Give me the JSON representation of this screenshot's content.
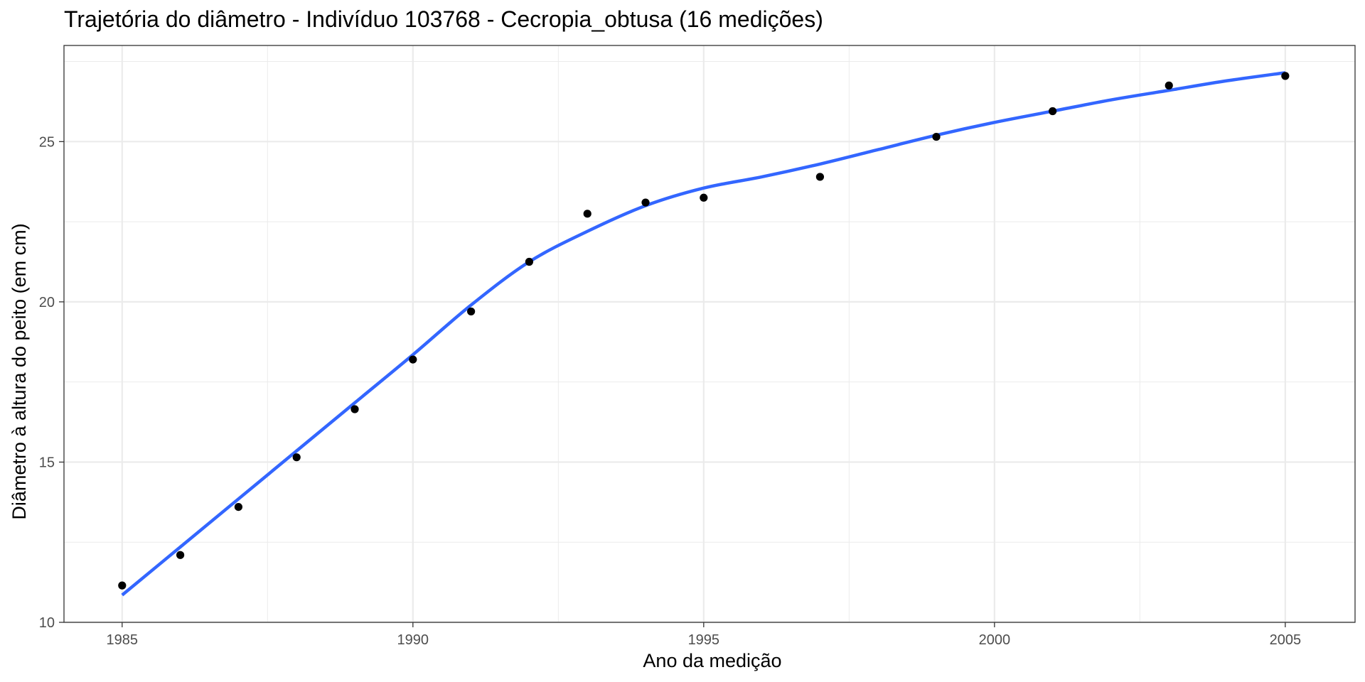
{
  "colors": {
    "background": "#ffffff",
    "panel_border": "#333333",
    "grid_major": "#ebebeb",
    "grid_minor": "#f5f5f5",
    "points": "#000000",
    "smooth_line": "#3366ff",
    "tick_label": "#4d4d4d"
  },
  "chart_data": {
    "type": "scatter",
    "title": "Trajetória do diâmetro - Indivíduo 103768 - Cecropia_obtusa (16 medições)",
    "xlabel": "Ano da medição",
    "ylabel": "Diâmetro à altura do peito (em cm)",
    "xlim": [
      1984,
      2006.2
    ],
    "ylim": [
      10,
      28
    ],
    "x_ticks": [
      1985,
      1990,
      1995,
      2000,
      2005
    ],
    "x_tick_labels": [
      "1985",
      "1990",
      "1995",
      "2000",
      "2005"
    ],
    "y_ticks": [
      10,
      15,
      20,
      25
    ],
    "y_tick_labels": [
      "10",
      "15",
      "20",
      "25"
    ],
    "grid": true,
    "legend": "none",
    "series": [
      {
        "kind": "points",
        "x": [
          1985,
          1986,
          1987,
          1988,
          1989,
          1990,
          1991,
          1992,
          1993,
          1994,
          1995,
          1997,
          1999,
          2001,
          2003,
          2005
        ],
        "y": [
          11.15,
          12.1,
          13.6,
          15.15,
          16.65,
          18.2,
          19.7,
          21.25,
          22.75,
          23.1,
          23.25,
          23.9,
          25.15,
          25.95,
          26.75,
          27.05
        ]
      },
      {
        "kind": "smooth",
        "x": [
          1985,
          1986,
          1987,
          1988,
          1989,
          1990,
          1991,
          1992,
          1993,
          1994,
          1995,
          1996,
          1997,
          1998,
          1999,
          2000,
          2001,
          2002,
          2003,
          2004,
          2005
        ],
        "y": [
          10.85,
          12.35,
          13.85,
          15.35,
          16.85,
          18.35,
          19.9,
          21.25,
          22.2,
          23.0,
          23.55,
          23.9,
          24.3,
          24.75,
          25.2,
          25.6,
          25.95,
          26.3,
          26.6,
          26.9,
          27.15
        ]
      }
    ]
  }
}
